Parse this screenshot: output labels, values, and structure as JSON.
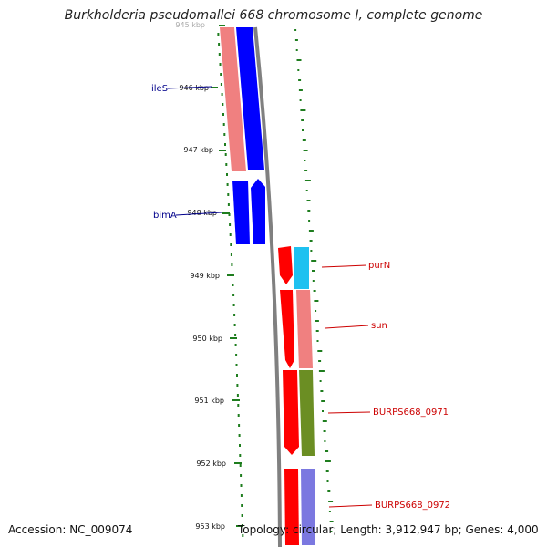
{
  "title": "Burkholderia pseudomallei 668 chromosome I, complete genome",
  "footer": {
    "accession": "Accession: NC_009074",
    "topology": "Topology: circular; Length: 3,912,947 bp; Genes: 4,000"
  },
  "ruler": {
    "ticks": [
      "945 kbp",
      "946 kbp",
      "947 kbp",
      "948 kbp",
      "949 kbp",
      "950 kbp",
      "951 kbp",
      "952 kbp",
      "953 kbp"
    ]
  },
  "gene_labels": {
    "left": [
      "ileS",
      "bimA"
    ],
    "right": [
      "purN",
      "sun",
      "BURPS668_0971",
      "BURPS668_0972"
    ]
  },
  "colors": {
    "forward_cds": "#ff0000",
    "reverse_cds": "#0000ff",
    "pink": "#f08080",
    "cyan": "#1ec1f0",
    "olive": "#6b8e23",
    "lavender": "#7b78e0",
    "backbone": "#808080",
    "tick_green": "#1e7d1e",
    "label_blue": "#00008b",
    "label_red": "#cc0000"
  }
}
